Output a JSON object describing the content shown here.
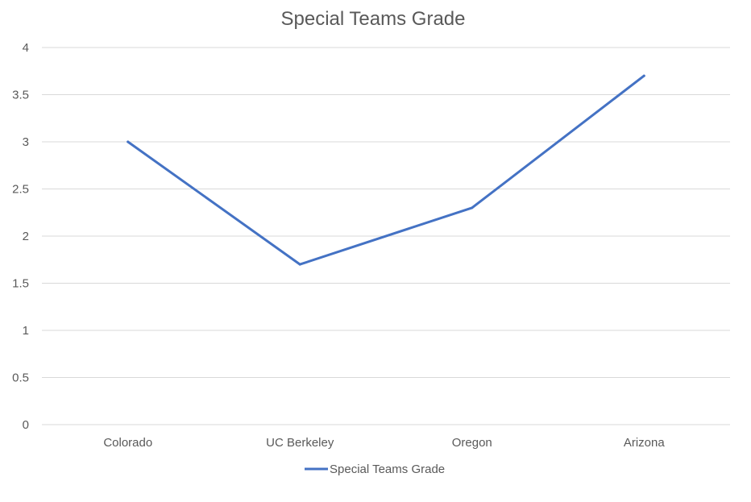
{
  "chart_data": {
    "type": "line",
    "title": "Special Teams Grade",
    "categories": [
      "Colorado",
      "UC Berkeley",
      "Oregon",
      "Arizona"
    ],
    "series": [
      {
        "name": "Special Teams Grade",
        "values": [
          3.0,
          1.7,
          2.3,
          3.7
        ]
      }
    ],
    "ylim": [
      0,
      4
    ],
    "yticks": [
      "0",
      "0.5",
      "1",
      "1.5",
      "2",
      "2.5",
      "3",
      "3.5",
      "4"
    ],
    "grid": true,
    "legend_position": "bottom",
    "colors": {
      "series": "#4472c4",
      "grid": "#d9d9d9",
      "text": "#595959"
    }
  }
}
